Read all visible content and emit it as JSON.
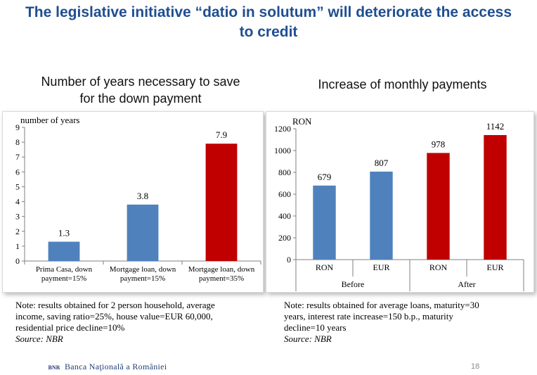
{
  "title": {
    "line1": "The legislative initiative “datio in solutum” will deteriorate the access",
    "line2": "to credit"
  },
  "chart_data": [
    {
      "type": "bar",
      "title": "Number of years necessary to save for the down payment",
      "title_lines": [
        "Number of years necessary to save",
        "for the down payment"
      ],
      "ylabel": "number of years",
      "ylim": [
        0,
        9
      ],
      "yticks": [
        0,
        1,
        2,
        3,
        4,
        5,
        6,
        7,
        8,
        9
      ],
      "categories": [
        [
          "Prima Casa, down",
          "payment=15%"
        ],
        [
          "Mortgage loan, down",
          "payment=15%"
        ],
        [
          "Mortgage loan, down",
          "payment=35%"
        ]
      ],
      "values": [
        1.3,
        3.8,
        7.9
      ],
      "value_labels": [
        "1.3",
        "3.8",
        "7.9"
      ],
      "colors": [
        "#4f81bd",
        "#4f81bd",
        "#c00000"
      ],
      "grid": false,
      "legend": "none"
    },
    {
      "type": "bar",
      "title": "Increase of monthly payments",
      "title_lines": [
        "Increase of monthly payments"
      ],
      "ylabel": "RON",
      "ylim": [
        0,
        1200
      ],
      "yticks": [
        0,
        200,
        400,
        600,
        800,
        1000,
        1200
      ],
      "categories": [
        "RON",
        "EUR",
        "RON",
        "EUR"
      ],
      "groups": [
        "Before",
        "After"
      ],
      "values": [
        679,
        807,
        978,
        1142
      ],
      "value_labels": [
        "679",
        "807",
        "978",
        "1142"
      ],
      "colors": [
        "#4f81bd",
        "#4f81bd",
        "#c00000",
        "#c00000"
      ],
      "grid": false,
      "legend": "none"
    }
  ],
  "notes": {
    "left": {
      "lines": [
        "Note: results obtained for 2 person household, average",
        "income, saving ratio=25%, house value=EUR 60,000,",
        "residential price decline=10%"
      ],
      "source": "Source: NBR"
    },
    "right": {
      "lines": [
        "Note: results obtained for average loans, maturity=30",
        "years, interest rate increase=150 b.p., maturity",
        "decline=10 years"
      ],
      "source": "Source: NBR"
    }
  },
  "footer": {
    "logo_mark": "BNR",
    "bank_name": "Banca Naţională a României",
    "page_number": "18"
  }
}
